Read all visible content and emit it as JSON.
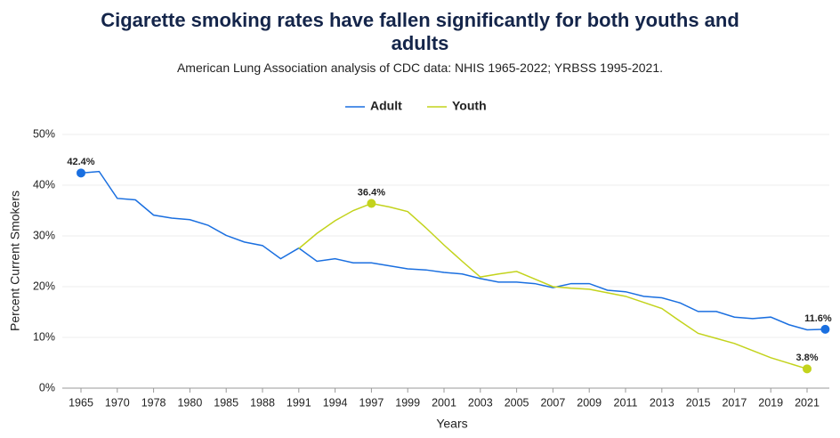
{
  "chart_data": {
    "type": "line",
    "title": "Cigarette smoking rates have fallen significantly for both youths and adults",
    "subtitle": "American Lung Association analysis of CDC data: NHIS 1965-2022; YRBSS 1995-2021.",
    "x_label": "Years",
    "y_label": "Percent Current Smokers",
    "categories": [
      "1965",
      null,
      "1970",
      null,
      "1978",
      null,
      "1980",
      null,
      "1985",
      null,
      "1988",
      null,
      "1991",
      null,
      "1994",
      null,
      "1997",
      null,
      "1999",
      null,
      "2001",
      null,
      "2003",
      null,
      "2005",
      null,
      "2007",
      null,
      "2009",
      null,
      "2011",
      null,
      "2013",
      null,
      "2015",
      null,
      "2017",
      null,
      "2019",
      null,
      "2021",
      null
    ],
    "series": [
      {
        "name": "Adult",
        "color": "#1a6fe0",
        "values": [
          42.4,
          42.7,
          37.4,
          37.1,
          34.1,
          33.5,
          33.2,
          32.1,
          30.1,
          28.8,
          28.1,
          25.5,
          27.6,
          25.0,
          25.5,
          24.7,
          24.7,
          24.1,
          23.5,
          23.3,
          22.8,
          22.5,
          21.6,
          20.9,
          20.9,
          20.6,
          19.8,
          20.6,
          20.6,
          19.3,
          19.0,
          18.1,
          17.8,
          16.8,
          15.1,
          15.1,
          14.0,
          13.7,
          14.0,
          12.5,
          11.5,
          11.6
        ],
        "value_labels": [
          "42.4%",
          null,
          null,
          null,
          null,
          null,
          null,
          null,
          null,
          null,
          null,
          null,
          null,
          null,
          null,
          null,
          null,
          null,
          null,
          null,
          null,
          null,
          null,
          null,
          null,
          null,
          null,
          null,
          null,
          null,
          null,
          null,
          null,
          null,
          null,
          null,
          null,
          null,
          null,
          null,
          null,
          "11.6%"
        ]
      },
      {
        "name": "Youth",
        "color": "#c3d31c",
        "values": [
          null,
          null,
          null,
          null,
          null,
          null,
          null,
          null,
          null,
          null,
          null,
          null,
          27.5,
          30.5,
          33.0,
          35.0,
          36.4,
          35.7,
          34.8,
          31.6,
          28.2,
          25.0,
          21.9,
          22.5,
          23.0,
          21.5,
          20.0,
          19.7,
          19.5,
          18.8,
          18.1,
          16.9,
          15.7,
          13.2,
          10.8,
          9.8,
          8.8,
          7.4,
          6.0,
          4.9,
          3.8,
          null
        ],
        "value_labels": [
          null,
          null,
          null,
          null,
          null,
          null,
          null,
          null,
          null,
          null,
          null,
          null,
          null,
          null,
          null,
          null,
          "36.4%",
          null,
          null,
          null,
          null,
          null,
          null,
          null,
          null,
          null,
          null,
          null,
          null,
          null,
          null,
          null,
          null,
          null,
          null,
          null,
          null,
          null,
          null,
          null,
          "3.8%",
          null
        ]
      }
    ],
    "ylim": [
      0,
      50
    ],
    "yticks": [
      {
        "value": 0,
        "label": "0%"
      },
      {
        "value": 10,
        "label": "10%"
      },
      {
        "value": 20,
        "label": "20%"
      },
      {
        "value": 30,
        "label": "30%"
      },
      {
        "value": 40,
        "label": "40%"
      },
      {
        "value": 50,
        "label": "50%"
      }
    ],
    "grid": true
  }
}
